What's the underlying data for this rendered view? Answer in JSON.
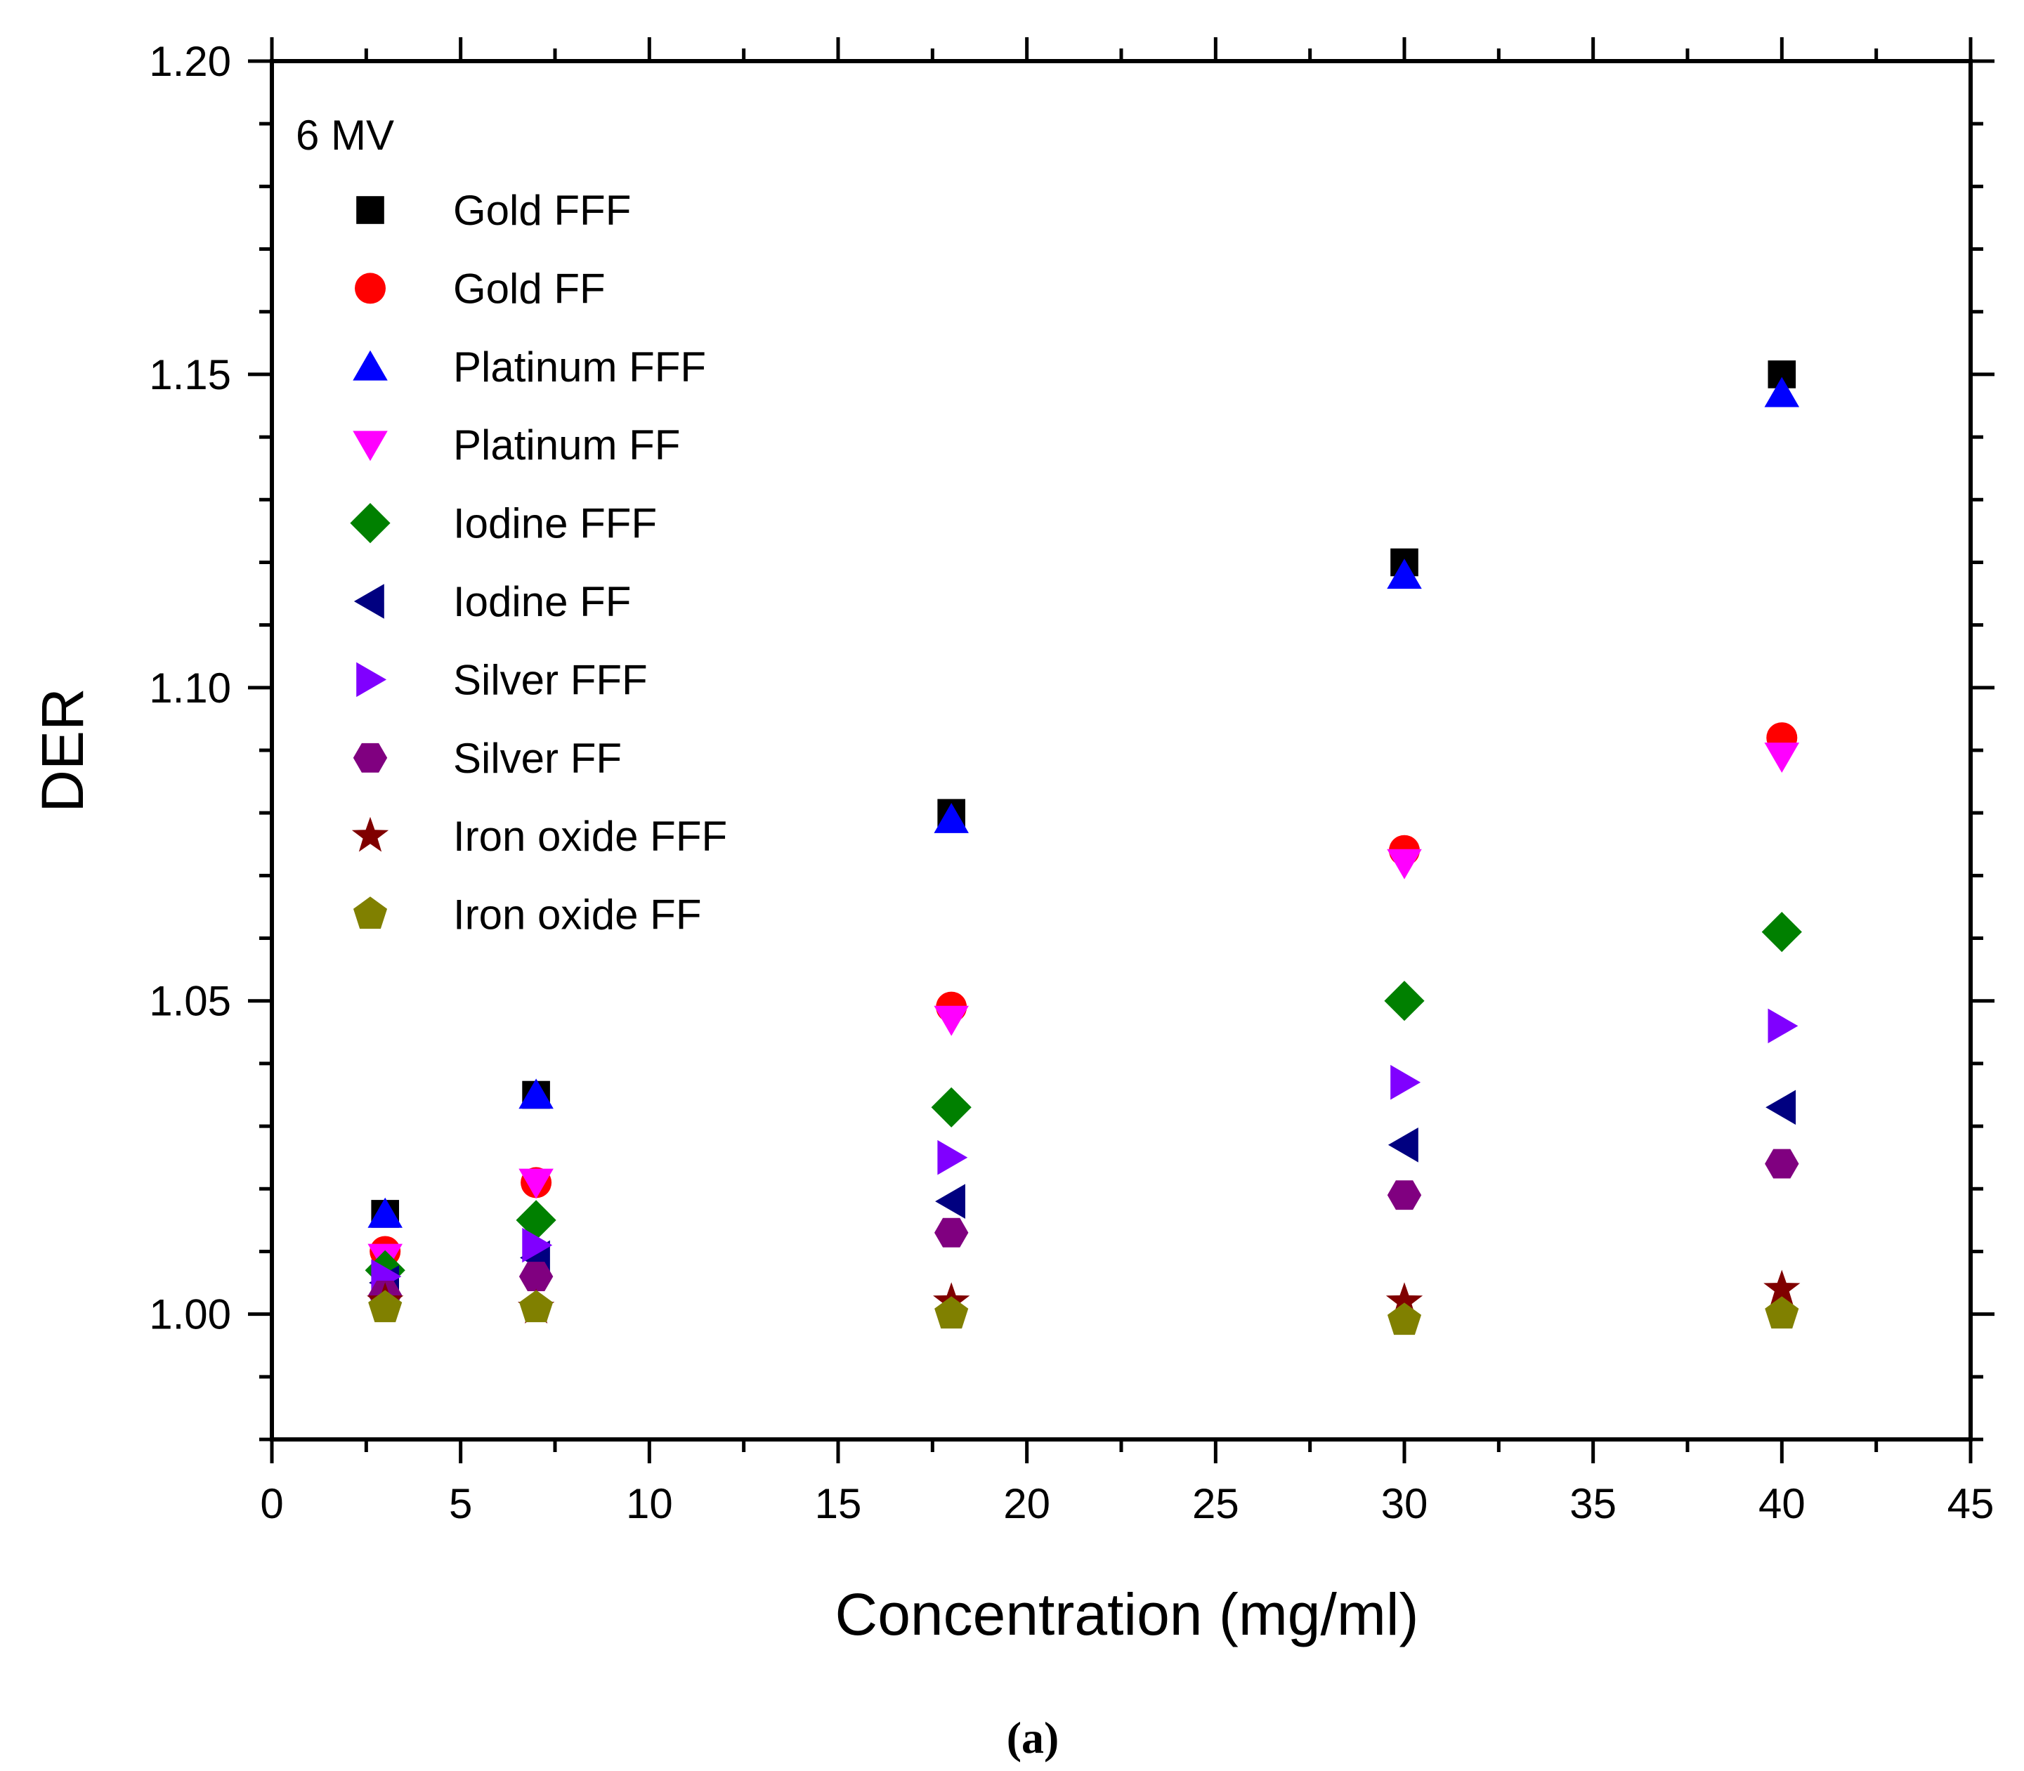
{
  "chart_data": {
    "type": "scatter",
    "title": "",
    "annotation": "6 MV",
    "panel_label": "(a)",
    "xlabel": "Concentration (mg/ml)",
    "ylabel": "DER",
    "xlim": [
      0,
      45
    ],
    "ylim": [
      0.98,
      1.2
    ],
    "x_ticks": [
      0,
      5,
      10,
      15,
      20,
      25,
      30,
      35,
      40,
      45
    ],
    "x_tick_labels": [
      "0",
      "5",
      "10",
      "15",
      "20",
      "25",
      "30",
      "35",
      "40",
      "45"
    ],
    "y_ticks": [
      1.0,
      1.05,
      1.1,
      1.15,
      1.2
    ],
    "y_tick_labels": [
      "1.00",
      "1.05",
      "1.10",
      "1.15",
      "1.20"
    ],
    "legend_position": "top-left",
    "x": [
      3,
      7,
      18,
      30,
      40
    ],
    "series": [
      {
        "name": "Gold FFF",
        "marker": "square",
        "color": "#000000",
        "values": [
          1.016,
          1.035,
          1.08,
          1.12,
          1.15
        ]
      },
      {
        "name": "Gold FF",
        "marker": "circle",
        "color": "#ff0000",
        "values": [
          1.01,
          1.021,
          1.049,
          1.074,
          1.092
        ]
      },
      {
        "name": "Platinum FFF",
        "marker": "triangle-up",
        "color": "#0000ff",
        "values": [
          1.016,
          1.035,
          1.079,
          1.118,
          1.147
        ]
      },
      {
        "name": "Platinum FF",
        "marker": "triangle-down",
        "color": "#ff00ff",
        "values": [
          1.009,
          1.021,
          1.047,
          1.072,
          1.089
        ]
      },
      {
        "name": "Iodine FFF",
        "marker": "diamond",
        "color": "#008000",
        "values": [
          1.007,
          1.015,
          1.033,
          1.05,
          1.061
        ]
      },
      {
        "name": "Iodine FF",
        "marker": "triangle-left",
        "color": "#000080",
        "values": [
          1.005,
          1.009,
          1.018,
          1.027,
          1.033
        ]
      },
      {
        "name": "Silver FFF",
        "marker": "triangle-right",
        "color": "#8000ff",
        "values": [
          1.006,
          1.011,
          1.025,
          1.037,
          1.046
        ]
      },
      {
        "name": "Silver FF",
        "marker": "hexagon",
        "color": "#800080",
        "values": [
          1.003,
          1.006,
          1.013,
          1.019,
          1.024
        ]
      },
      {
        "name": "Iron oxide FFF",
        "marker": "star",
        "color": "#800000",
        "values": [
          1.002,
          1.001,
          1.002,
          1.002,
          1.004
        ]
      },
      {
        "name": "Iron oxide FF",
        "marker": "pentagon",
        "color": "#808000",
        "values": [
          1.001,
          1.001,
          1.0,
          0.999,
          1.0
        ]
      }
    ]
  }
}
